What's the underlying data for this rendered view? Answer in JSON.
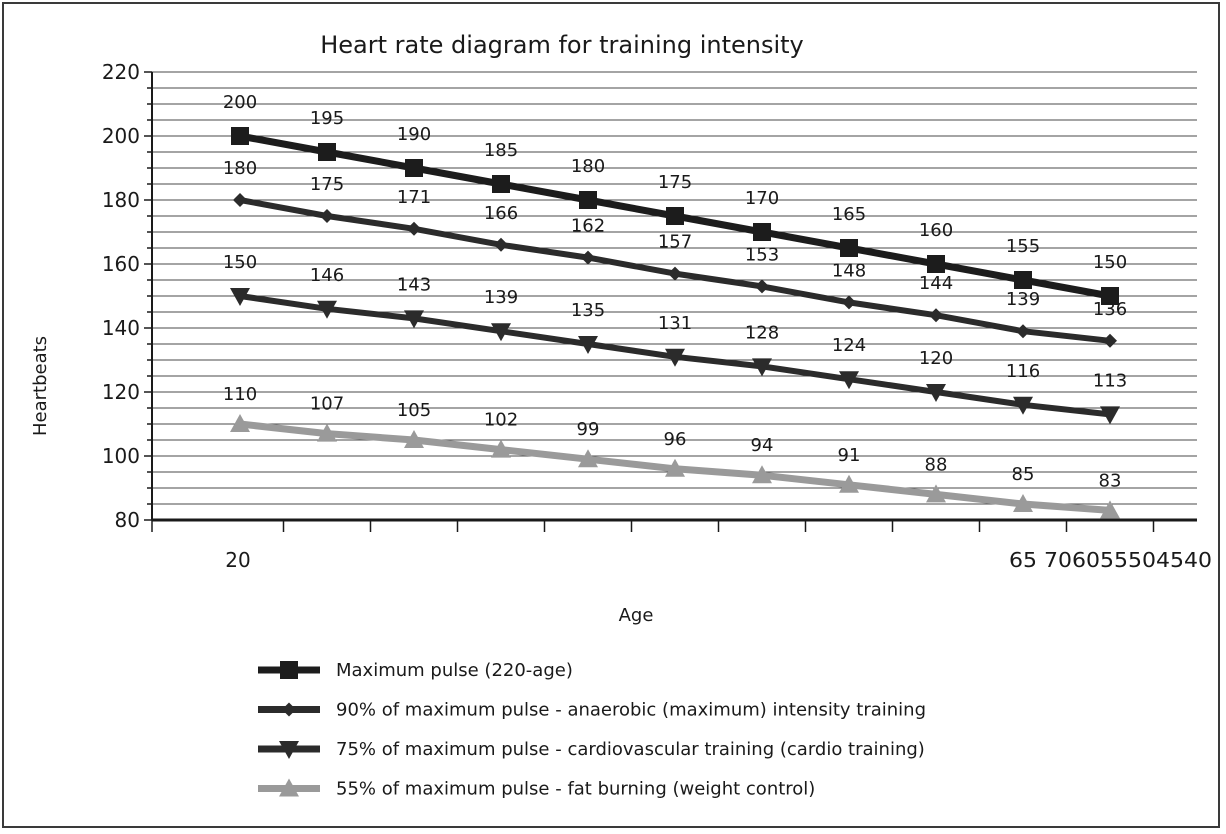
{
  "chart_data": {
    "type": "line",
    "title": "Heart rate diagram for training intensity",
    "xlabel": "Age",
    "ylabel": "Heartbeats",
    "ylim": [
      80,
      220
    ],
    "yticks": [
      80,
      100,
      120,
      140,
      160,
      180,
      200,
      220
    ],
    "x_tick_labels": {
      "first": "20",
      "last": "65 706055504540"
    },
    "grid": true,
    "legend_position": "bottom",
    "series": [
      {
        "name": "Maximum pulse (220-age)",
        "marker": "square",
        "color": "#1c1c1c",
        "values": [
          200,
          195,
          190,
          185,
          180,
          175,
          170,
          165,
          160,
          155,
          150
        ]
      },
      {
        "name": "90% of maximum pulse - anaerobic (maximum) intensity training",
        "marker": "diamond",
        "color": "#2b2b2b",
        "values": [
          180,
          175,
          171,
          166,
          162,
          157,
          153,
          148,
          144,
          139,
          136
        ]
      },
      {
        "name": "75% of maximum pulse - cardiovascular training (cardio training)",
        "marker": "triangle-down",
        "color": "#2b2b2b",
        "values": [
          150,
          146,
          143,
          139,
          135,
          131,
          128,
          124,
          120,
          116,
          113
        ]
      },
      {
        "name": "55% of maximum pulse - fat burning (weight control)",
        "marker": "triangle-up",
        "color": "#9a9a9a",
        "values": [
          110,
          107,
          105,
          102,
          99,
          96,
          94,
          91,
          88,
          85,
          83
        ]
      }
    ]
  }
}
